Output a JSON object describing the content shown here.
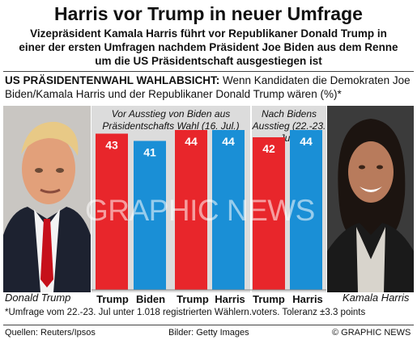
{
  "headline": "Harris vor Trump in neuer Umfrage",
  "subhead": "Vizepräsident Kamala Harris führt vor Republikaner Donald Trump in einer der ersten Umfragen nachdem Präsident Joe Biden aus dem Renne um die US Präsidentschaft ausgestiegen ist",
  "intro_bold": "US PRÄSIDENTENWAHL WAHLABSICHT:",
  "intro_text": " Wenn Kandidaten die Demokraten Joe Biden/Kamala Harris und der Republikaner Donald Trump wären (%)*",
  "left_caption": "Donald Trump",
  "right_caption": "Kamala Harris",
  "section1_title": "Vor Ausstieg von Biden aus Präsidentschafts Wahl (16. Jul.)",
  "section2_title": "Nach Bidens Ausstieg (22.-23. Jul.)",
  "footnote": "*Umfrage vom   22.-23. Jul unter 1.018 registrierten Wählern.voters. Toleranz ±3.3 points",
  "source": "Quellen: Reuters/Ipsos",
  "photo_credit": "Bilder: Getty Images",
  "copyright": "© GRAPHIC NEWS",
  "watermark": "GRAPHIC NEWS",
  "colors": {
    "trump": "#e8262b",
    "democrat": "#1a8fd6",
    "panel": "#dcdcdc"
  },
  "chart_data": {
    "type": "bar",
    "ylabel": "",
    "ylim": [
      0,
      50
    ],
    "groups": [
      {
        "title": "Vor Ausstieg von Biden aus Präsidentschafts Wahl (16. Jul.)",
        "categories": [
          "Trump",
          "Biden"
        ],
        "values": [
          43,
          41
        ]
      },
      {
        "title": "Vor Ausstieg von Biden aus Präsidentschafts Wahl (16. Jul.)",
        "categories": [
          "Trump",
          "Harris"
        ],
        "values": [
          44,
          44
        ]
      },
      {
        "title": "Nach Bidens Ausstieg (22.-23. Jul.)",
        "categories": [
          "Trump",
          "Harris"
        ],
        "values": [
          42,
          44
        ]
      }
    ]
  }
}
